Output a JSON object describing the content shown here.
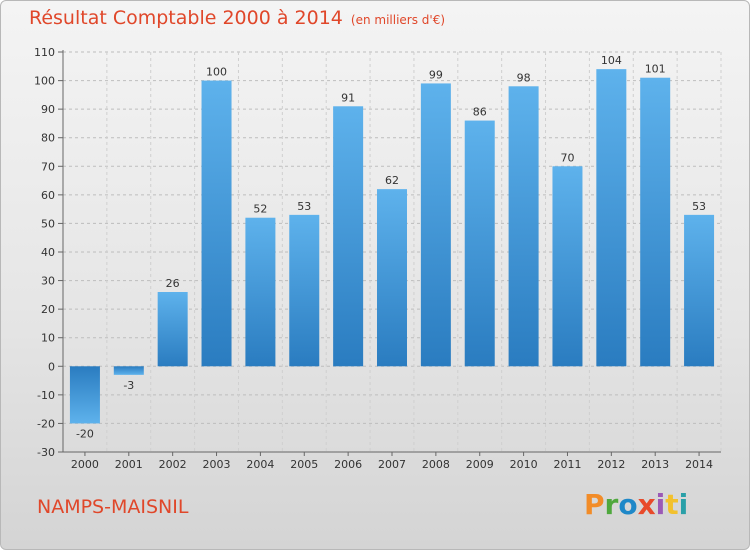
{
  "header": {
    "title": "Résultat Comptable 2000 à 2014",
    "subtitle": "(en milliers d'€)"
  },
  "footer": {
    "place": "NAMPS-MAISNIL",
    "logo": "Proxiti"
  },
  "colors": {
    "title": "#e0472a",
    "bar_top": "#5eb2ec",
    "bar_bottom": "#2a7cc0",
    "logo": [
      "#f28c28",
      "#4fa83d",
      "#1e88c8",
      "#e84a2a",
      "#9b59b6",
      "#f2c12e",
      "#2aa0a8"
    ]
  },
  "chart_data": {
    "type": "bar",
    "title": "Résultat Comptable 2000 à 2014",
    "subtitle": "(en milliers d'€)",
    "xlabel": "",
    "ylabel": "",
    "categories": [
      "2000",
      "2001",
      "2002",
      "2003",
      "2004",
      "2005",
      "2006",
      "2007",
      "2008",
      "2009",
      "2010",
      "2011",
      "2012",
      "2013",
      "2014"
    ],
    "values": [
      -20,
      -3,
      26,
      100,
      52,
      53,
      91,
      62,
      99,
      86,
      98,
      70,
      104,
      101,
      53
    ],
    "ylim": [
      -30,
      110
    ],
    "yticks": [
      -30,
      -20,
      -10,
      0,
      10,
      20,
      30,
      40,
      50,
      60,
      70,
      80,
      90,
      100,
      110
    ],
    "grid": "horizontal-dashed"
  }
}
